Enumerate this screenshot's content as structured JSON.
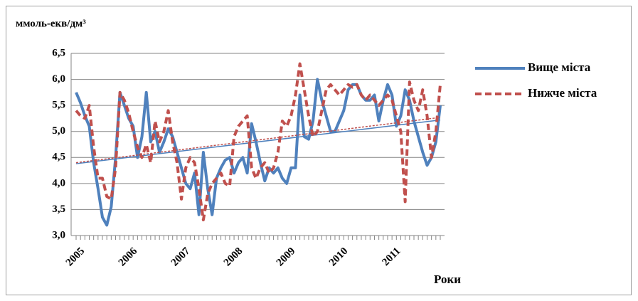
{
  "chart_data": {
    "type": "line",
    "y_label": "ммоль-екв/дм³",
    "x_label": "Роки",
    "categories": [
      "2005",
      null,
      null,
      null,
      null,
      null,
      null,
      null,
      null,
      null,
      null,
      null,
      "2006",
      null,
      null,
      null,
      null,
      null,
      null,
      null,
      null,
      null,
      null,
      null,
      "2007",
      null,
      null,
      null,
      null,
      null,
      null,
      null,
      null,
      null,
      null,
      null,
      "2008",
      null,
      null,
      null,
      null,
      null,
      null,
      null,
      null,
      null,
      null,
      null,
      "2009",
      null,
      null,
      null,
      null,
      null,
      null,
      null,
      null,
      null,
      null,
      null,
      "2010",
      null,
      null,
      null,
      null,
      null,
      null,
      null,
      null,
      null,
      null,
      null,
      "2011",
      null,
      null,
      null,
      null,
      null,
      null,
      null,
      null,
      null,
      null,
      null
    ],
    "series": [
      {
        "name": "Вище міста",
        "color": "#4f81bd",
        "dash": false,
        "trend": [
          4.38,
          5.22
        ],
        "values": [
          5.75,
          5.55,
          5.3,
          5.1,
          4.4,
          3.9,
          3.35,
          3.2,
          3.55,
          4.5,
          5.75,
          5.5,
          5.25,
          5.1,
          4.5,
          4.9,
          5.75,
          4.8,
          5.0,
          4.6,
          4.8,
          5.05,
          4.9,
          4.6,
          4.3,
          4.0,
          3.9,
          4.2,
          3.4,
          4.6,
          3.9,
          3.4,
          4.1,
          4.3,
          4.45,
          4.5,
          4.2,
          4.4,
          4.5,
          4.2,
          5.15,
          4.8,
          4.4,
          4.05,
          4.3,
          4.2,
          4.3,
          4.1,
          4.0,
          4.3,
          4.3,
          5.7,
          4.9,
          4.85,
          5.2,
          6.0,
          5.6,
          5.3,
          5.0,
          5.0,
          5.2,
          5.4,
          5.8,
          5.9,
          5.9,
          5.7,
          5.6,
          5.6,
          5.7,
          5.2,
          5.6,
          5.9,
          5.7,
          5.1,
          5.3,
          5.8,
          5.6,
          5.2,
          4.9,
          4.6,
          4.35,
          4.5,
          4.8,
          5.5
        ]
      },
      {
        "name": "Нижче міста",
        "color": "#c0504d",
        "dash": true,
        "trend": [
          4.4,
          5.27
        ],
        "values": [
          5.4,
          5.3,
          5.25,
          5.5,
          4.7,
          4.1,
          4.1,
          3.75,
          3.7,
          4.3,
          5.75,
          5.6,
          5.35,
          5.0,
          4.7,
          4.5,
          4.75,
          4.4,
          5.2,
          4.8,
          5.0,
          5.4,
          4.8,
          4.4,
          3.7,
          4.3,
          4.5,
          4.4,
          3.9,
          3.3,
          3.8,
          4.0,
          4.1,
          4.2,
          4.0,
          3.95,
          4.9,
          5.1,
          5.2,
          5.3,
          4.3,
          4.1,
          4.3,
          4.4,
          4.2,
          4.3,
          4.6,
          5.2,
          5.1,
          5.3,
          5.7,
          6.3,
          5.8,
          5.3,
          4.9,
          5.0,
          5.4,
          5.8,
          5.9,
          5.8,
          5.7,
          5.8,
          5.9,
          5.85,
          5.9,
          5.7,
          5.6,
          5.7,
          5.6,
          5.5,
          5.6,
          5.7,
          5.6,
          5.3,
          5.0,
          3.65,
          5.95,
          5.6,
          5.4,
          5.8,
          5.3,
          4.5,
          5.0,
          5.9
        ]
      }
    ],
    "ylim": [
      3.0,
      6.5
    ],
    "yticks": [
      {
        "value": 3.0,
        "label": "3,0"
      },
      {
        "value": 3.5,
        "label": "3,5"
      },
      {
        "value": 4.0,
        "label": "4,0"
      },
      {
        "value": 4.5,
        "label": "4,5"
      },
      {
        "value": 5.0,
        "label": "5,0"
      },
      {
        "value": 5.5,
        "label": "5,5"
      },
      {
        "value": 6.0,
        "label": "6,0"
      },
      {
        "value": 6.5,
        "label": "6,5"
      }
    ],
    "grid": true,
    "legend": "right"
  }
}
